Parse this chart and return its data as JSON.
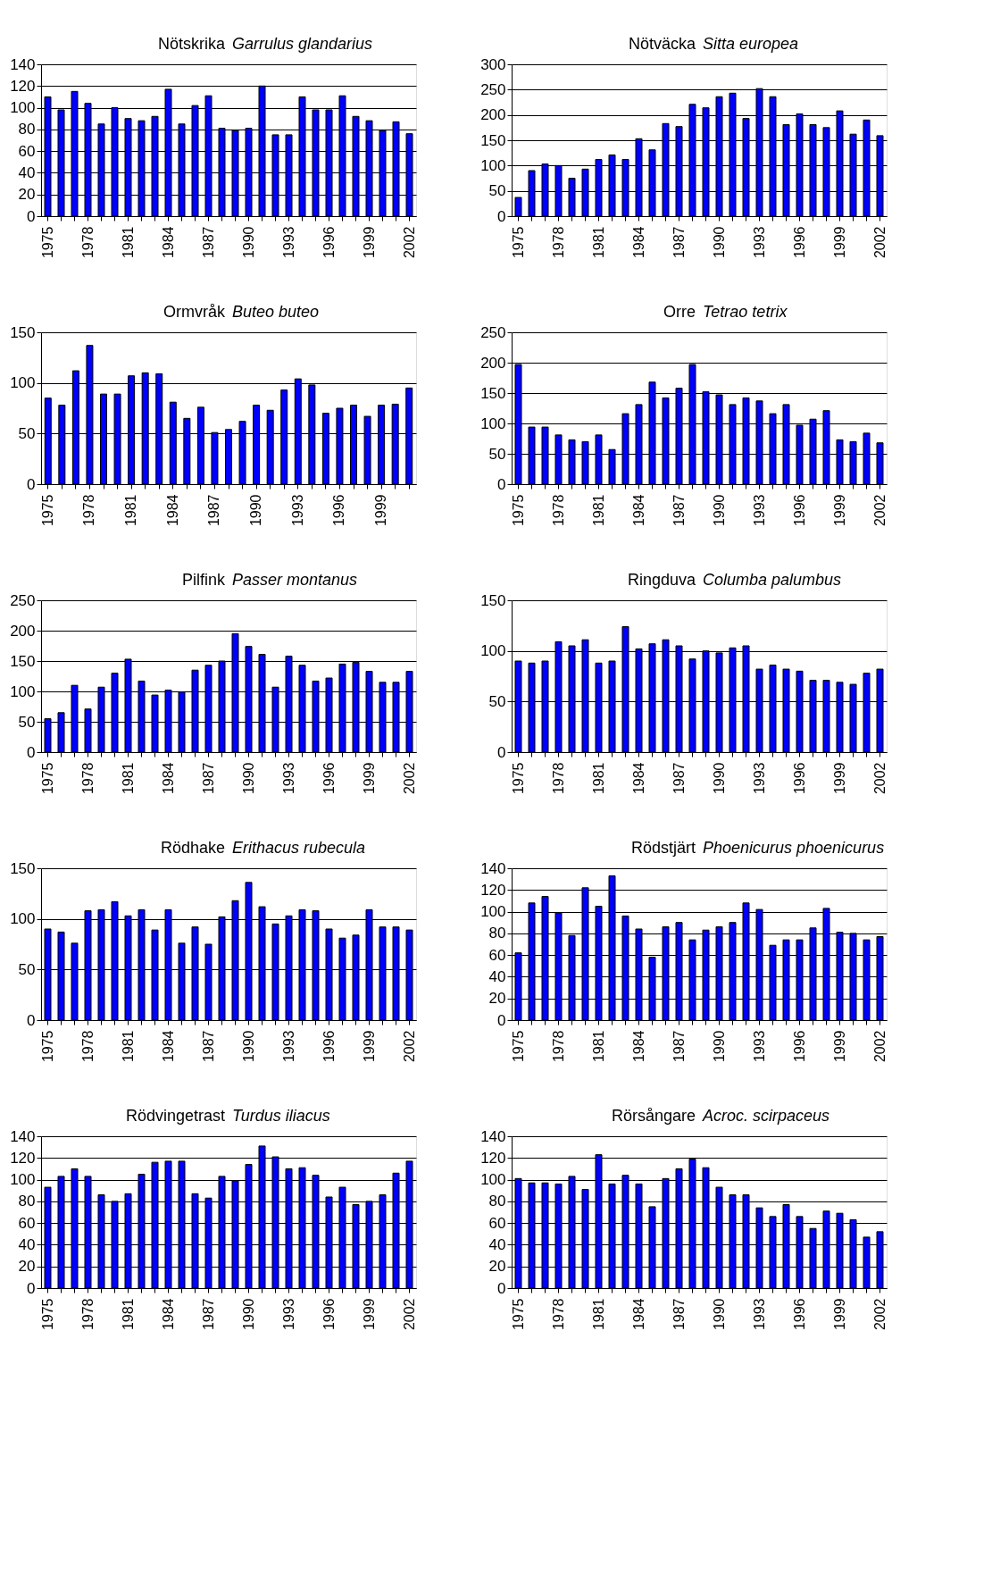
{
  "chart_data": [
    {
      "type": "bar",
      "title": "Nötskrika",
      "subtitle": "Garrulus glandarius",
      "categories": [
        "1975",
        null,
        null,
        "1978",
        null,
        null,
        "1981",
        null,
        null,
        "1984",
        null,
        null,
        "1987",
        null,
        null,
        "1990",
        null,
        null,
        "1993",
        null,
        null,
        "1996",
        null,
        null,
        "1999",
        null,
        null,
        "2002"
      ],
      "values": [
        110,
        98,
        115,
        104,
        85,
        100,
        90,
        88,
        92,
        117,
        85,
        102,
        111,
        81,
        79,
        81,
        120,
        75,
        75,
        110,
        98,
        98,
        111,
        92,
        88,
        79,
        87,
        76
      ],
      "color": "#0000ff",
      "ylim": [
        0,
        140
      ],
      "yticks": [
        0,
        20,
        40,
        60,
        80,
        100,
        120,
        140
      ],
      "grid": "y"
    },
    {
      "type": "bar",
      "title": "Nötväcka",
      "subtitle": "Sitta europea",
      "categories": [
        "1975",
        null,
        null,
        "1978",
        null,
        null,
        "1981",
        null,
        null,
        "1984",
        null,
        null,
        "1987",
        null,
        null,
        "1990",
        null,
        null,
        "1993",
        null,
        null,
        "1996",
        null,
        null,
        "1999",
        null,
        null,
        "2002"
      ],
      "values": [
        37,
        90,
        103,
        100,
        75,
        93,
        112,
        121,
        112,
        153,
        131,
        183,
        177,
        221,
        214,
        236,
        243,
        193,
        252,
        236,
        181,
        202,
        181,
        175,
        208,
        162,
        190,
        159
      ],
      "color": "#0000ff",
      "ylim": [
        0,
        300
      ],
      "yticks": [
        0,
        50,
        100,
        150,
        200,
        250,
        300
      ],
      "grid": "y"
    },
    {
      "type": "bar",
      "title": "Ormvråk",
      "subtitle": "Buteo buteo",
      "categories": [
        "1975",
        null,
        null,
        "1978",
        null,
        null,
        "1981",
        null,
        null,
        "1984",
        null,
        null,
        "1987",
        null,
        null,
        "1990",
        null,
        null,
        "1993",
        null,
        null,
        "1996",
        null,
        null,
        "1999",
        null,
        null
      ],
      "values": [
        85,
        78,
        112,
        137,
        89,
        89,
        107,
        110,
        109,
        81,
        65,
        76,
        51,
        54,
        62,
        78,
        73,
        93,
        104,
        98,
        70,
        75,
        78,
        67,
        78,
        79,
        95
      ],
      "color": "#0000ff",
      "ylim": [
        0,
        150
      ],
      "yticks": [
        0,
        50,
        100,
        150
      ],
      "grid": "y"
    },
    {
      "type": "bar",
      "title": "Orre",
      "subtitle": "Tetrao tetrix",
      "categories": [
        "1975",
        null,
        null,
        "1978",
        null,
        null,
        "1981",
        null,
        null,
        "1984",
        null,
        null,
        "1987",
        null,
        null,
        "1990",
        null,
        null,
        "1993",
        null,
        null,
        "1996",
        null,
        null,
        "1999",
        null,
        null,
        "2002"
      ],
      "values": [
        197,
        94,
        94,
        81,
        73,
        70,
        81,
        57,
        116,
        131,
        168,
        142,
        158,
        197,
        152,
        147,
        131,
        142,
        137,
        116,
        131,
        97,
        107,
        121,
        73,
        70,
        84,
        68
      ],
      "color": "#0000ff",
      "ylim": [
        0,
        250
      ],
      "yticks": [
        0,
        50,
        100,
        150,
        200,
        250
      ],
      "grid": "y"
    },
    {
      "type": "bar",
      "title": "Pilfink",
      "subtitle": "Passer montanus",
      "categories": [
        "1975",
        null,
        null,
        "1978",
        null,
        null,
        "1981",
        null,
        null,
        "1984",
        null,
        null,
        "1987",
        null,
        null,
        "1990",
        null,
        null,
        "1993",
        null,
        null,
        "1996",
        null,
        null,
        "1999",
        null,
        null,
        "2002"
      ],
      "values": [
        55,
        65,
        110,
        71,
        107,
        130,
        153,
        117,
        94,
        102,
        99,
        135,
        143,
        150,
        195,
        174,
        161,
        107,
        158,
        143,
        117,
        122,
        145,
        148,
        133,
        115,
        115,
        133
      ],
      "color": "#0000ff",
      "ylim": [
        0,
        250
      ],
      "yticks": [
        0,
        50,
        100,
        150,
        200,
        250
      ],
      "grid": "y"
    },
    {
      "type": "bar",
      "title": "Ringduva",
      "subtitle": "Columba palumbus",
      "categories": [
        "1975",
        null,
        null,
        "1978",
        null,
        null,
        "1981",
        null,
        null,
        "1984",
        null,
        null,
        "1987",
        null,
        null,
        "1990",
        null,
        null,
        "1993",
        null,
        null,
        "1996",
        null,
        null,
        "1999",
        null,
        null,
        "2002"
      ],
      "values": [
        90,
        88,
        90,
        109,
        105,
        111,
        88,
        90,
        124,
        102,
        107,
        111,
        105,
        92,
        100,
        98,
        103,
        105,
        82,
        86,
        82,
        80,
        71,
        71,
        69,
        67,
        78,
        82
      ],
      "color": "#0000ff",
      "ylim": [
        0,
        150
      ],
      "yticks": [
        0,
        50,
        100,
        150
      ],
      "grid": "y"
    },
    {
      "type": "bar",
      "title": "Rödhake",
      "subtitle": "Erithacus rubecula",
      "categories": [
        "1975",
        null,
        null,
        "1978",
        null,
        null,
        "1981",
        null,
        null,
        "1984",
        null,
        null,
        "1987",
        null,
        null,
        "1990",
        null,
        null,
        "1993",
        null,
        null,
        "1996",
        null,
        null,
        "1999",
        null,
        null,
        "2002"
      ],
      "values": [
        90,
        87,
        76,
        108,
        109,
        117,
        103,
        109,
        89,
        109,
        76,
        92,
        75,
        102,
        118,
        136,
        112,
        95,
        103,
        109,
        108,
        90,
        81,
        84,
        109,
        92,
        92,
        89
      ],
      "color": "#0000ff",
      "ylim": [
        0,
        150
      ],
      "yticks": [
        0,
        50,
        100,
        150
      ],
      "grid": "y"
    },
    {
      "type": "bar",
      "title": "Rödstjärt",
      "subtitle": "Phoenicurus phoenicurus",
      "categories": [
        "1975",
        null,
        null,
        "1978",
        null,
        null,
        "1981",
        null,
        null,
        "1984",
        null,
        null,
        "1987",
        null,
        null,
        "1990",
        null,
        null,
        "1993",
        null,
        null,
        "1996",
        null,
        null,
        "1999",
        null,
        null,
        "2002"
      ],
      "values": [
        62,
        108,
        114,
        99,
        78,
        122,
        105,
        133,
        96,
        84,
        58,
        86,
        90,
        74,
        83,
        86,
        90,
        108,
        102,
        69,
        74,
        74,
        85,
        103,
        81,
        80,
        74,
        77
      ],
      "color": "#0000ff",
      "ylim": [
        0,
        140
      ],
      "yticks": [
        0,
        20,
        40,
        60,
        80,
        100,
        120,
        140
      ],
      "grid": "y"
    },
    {
      "type": "bar",
      "title": "Rödvingetrast",
      "subtitle": "Turdus iliacus",
      "categories": [
        "1975",
        null,
        null,
        "1978",
        null,
        null,
        "1981",
        null,
        null,
        "1984",
        null,
        null,
        "1987",
        null,
        null,
        "1990",
        null,
        null,
        "1993",
        null,
        null,
        "1996",
        null,
        null,
        "1999",
        null,
        null,
        "2002"
      ],
      "values": [
        93,
        103,
        110,
        103,
        86,
        80,
        87,
        105,
        116,
        117,
        117,
        87,
        83,
        103,
        99,
        114,
        131,
        121,
        110,
        111,
        104,
        84,
        93,
        77,
        80,
        86,
        106,
        117
      ],
      "color": "#0000ff",
      "ylim": [
        0,
        140
      ],
      "yticks": [
        0,
        20,
        40,
        60,
        80,
        100,
        120,
        140
      ],
      "grid": "y"
    },
    {
      "type": "bar",
      "title": "Rörsångare",
      "subtitle": "Acroc. scirpaceus",
      "categories": [
        "1975",
        null,
        null,
        "1978",
        null,
        null,
        "1981",
        null,
        null,
        "1984",
        null,
        null,
        "1987",
        null,
        null,
        "1990",
        null,
        null,
        "1993",
        null,
        null,
        "1996",
        null,
        null,
        "1999",
        null,
        null,
        "2002"
      ],
      "values": [
        101,
        97,
        97,
        96,
        103,
        91,
        123,
        96,
        104,
        96,
        75,
        101,
        110,
        119,
        111,
        93,
        86,
        86,
        74,
        66,
        77,
        66,
        55,
        71,
        69,
        63,
        47,
        52
      ],
      "color": "#0000ff",
      "ylim": [
        0,
        140
      ],
      "yticks": [
        0,
        20,
        40,
        60,
        80,
        100,
        120,
        140
      ],
      "grid": "y"
    }
  ]
}
